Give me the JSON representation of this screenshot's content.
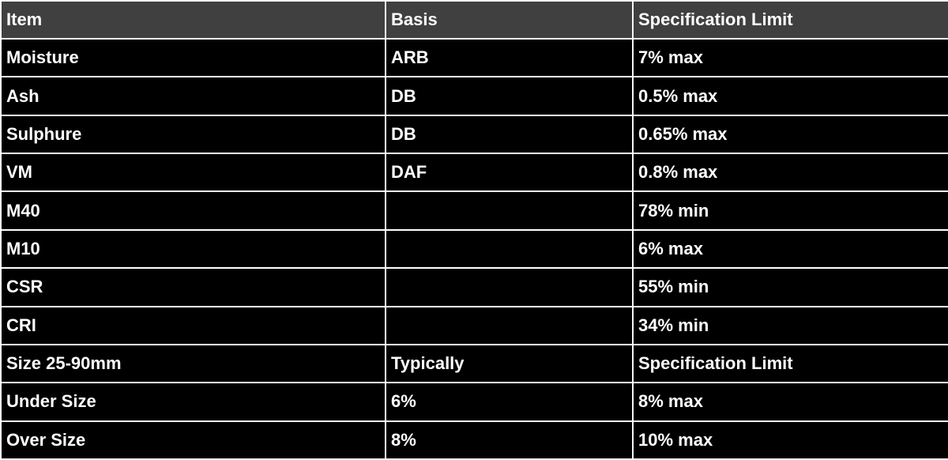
{
  "table": {
    "header": [
      "Item",
      "Basis",
      "Specification Limit"
    ],
    "rows": [
      [
        "Moisture",
        "ARB",
        "7% max"
      ],
      [
        "Ash",
        "DB",
        "0.5% max"
      ],
      [
        "Sulphure",
        "DB",
        "0.65% max"
      ],
      [
        "VM",
        "DAF",
        "0.8% max"
      ],
      [
        "M40",
        null,
        "78% min"
      ],
      [
        "M10",
        null,
        "6% max"
      ],
      [
        "CSR",
        null,
        "55% min"
      ],
      [
        "CRI",
        null,
        "34% min"
      ],
      [
        "Size 25-90mm",
        "Typically",
        "Specification Limit"
      ],
      [
        "Under Size",
        "6%",
        "8% max"
      ],
      [
        "Over Size",
        "8%",
        "10% max"
      ]
    ]
  }
}
